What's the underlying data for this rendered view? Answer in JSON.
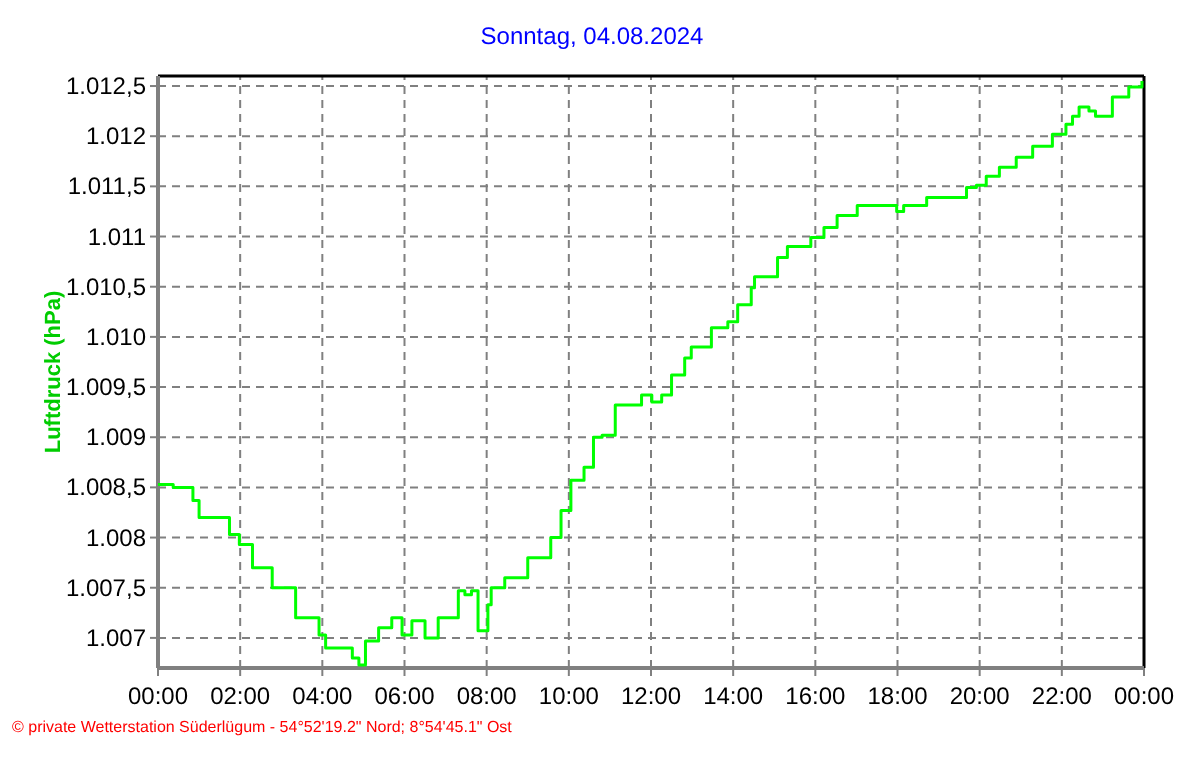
{
  "chart_data": {
    "type": "step",
    "title": "Sonntag, 04.08.2024",
    "ylabel": "Luftdruck (hPa)",
    "annotations": [
      "© private Wetterstation Süderlügum - 54°52'19.2\" Nord; 8°54'45.1\" Ost"
    ],
    "xlim": [
      0,
      24
    ],
    "ylim": [
      1006.7,
      1012.6
    ],
    "xticks": [
      {
        "value": 0,
        "label": "00:00"
      },
      {
        "value": 2,
        "label": "02:00"
      },
      {
        "value": 4,
        "label": "04:00"
      },
      {
        "value": 6,
        "label": "06:00"
      },
      {
        "value": 8,
        "label": "08:00"
      },
      {
        "value": 10,
        "label": "10:00"
      },
      {
        "value": 12,
        "label": "12:00"
      },
      {
        "value": 14,
        "label": "14:00"
      },
      {
        "value": 16,
        "label": "16:00"
      },
      {
        "value": 18,
        "label": "18:00"
      },
      {
        "value": 20,
        "label": "20:00"
      },
      {
        "value": 22,
        "label": "22:00"
      },
      {
        "value": 24,
        "label": "00:00"
      }
    ],
    "yticks": [
      {
        "value": 1007,
        "label": "1.007"
      },
      {
        "value": 1007.5,
        "label": "1.007,5"
      },
      {
        "value": 1008,
        "label": "1.008"
      },
      {
        "value": 1008.5,
        "label": "1.008,5"
      },
      {
        "value": 1009,
        "label": "1.009"
      },
      {
        "value": 1009.5,
        "label": "1.009,5"
      },
      {
        "value": 1010,
        "label": "1.010"
      },
      {
        "value": 1010.5,
        "label": "1.010,5"
      },
      {
        "value": 1011,
        "label": "1.011"
      },
      {
        "value": 1011.5,
        "label": "1.011,5"
      },
      {
        "value": 1012,
        "label": "1.012"
      },
      {
        "value": 1012.5,
        "label": "1.012,5"
      }
    ],
    "grid": true,
    "line_style": "solid",
    "marker": "none",
    "series": [
      {
        "color": "#00ff00",
        "x": [
          0,
          0.37,
          0.85,
          1.0,
          1.34,
          1.74,
          1.98,
          2.3,
          2.7,
          2.78,
          3.19,
          3.35,
          3.68,
          3.92,
          4.08,
          4.4,
          4.73,
          4.89,
          5.05,
          5.37,
          5.69,
          5.94,
          6.18,
          6.5,
          6.82,
          7.15,
          7.31,
          7.47,
          7.63,
          7.79,
          8.03,
          8.11,
          8.35,
          8.44,
          8.76,
          9.0,
          9.32,
          9.56,
          9.81,
          10.05,
          10.37,
          10.6,
          10.81,
          11.13,
          11.53,
          11.77,
          12.02,
          12.26,
          12.5,
          12.82,
          12.98,
          13.47,
          13.87,
          14.11,
          14.44,
          14.52,
          14.92,
          15.08,
          15.32,
          15.65,
          15.89,
          16.21,
          16.53,
          17.02,
          17.66,
          17.98,
          18.15,
          18.71,
          19.44,
          19.68,
          19.92,
          20.16,
          20.48,
          20.89,
          21.29,
          21.61,
          21.77,
          22.1,
          22.26,
          22.42,
          22.66,
          22.82,
          23.06,
          23.23,
          23.55,
          23.63,
          23.95
        ],
        "values": [
          1008.53,
          1008.5,
          1008.37,
          1008.2,
          1008.2,
          1008.03,
          1007.93,
          1007.7,
          1007.7,
          1007.5,
          1007.5,
          1007.2,
          1007.2,
          1007.03,
          1006.9,
          1006.9,
          1006.8,
          1006.73,
          1006.97,
          1007.1,
          1007.2,
          1007.03,
          1007.17,
          1007.0,
          1007.2,
          1007.2,
          1007.47,
          1007.43,
          1007.47,
          1007.07,
          1007.33,
          1007.5,
          1007.5,
          1007.6,
          1007.6,
          1007.8,
          1007.8,
          1008.0,
          1008.27,
          1008.57,
          1008.7,
          1009.0,
          1009.02,
          1009.32,
          1009.32,
          1009.42,
          1009.35,
          1009.42,
          1009.62,
          1009.79,
          1009.9,
          1010.09,
          1010.15,
          1010.32,
          1010.49,
          1010.6,
          1010.6,
          1010.79,
          1010.9,
          1010.9,
          1010.99,
          1011.09,
          1011.21,
          1011.31,
          1011.31,
          1011.25,
          1011.31,
          1011.39,
          1011.39,
          1011.49,
          1011.51,
          1011.6,
          1011.69,
          1011.79,
          1011.9,
          1011.9,
          1012.02,
          1012.12,
          1012.2,
          1012.29,
          1012.25,
          1012.2,
          1012.2,
          1012.39,
          1012.39,
          1012.49,
          1012.55
        ]
      }
    ]
  }
}
